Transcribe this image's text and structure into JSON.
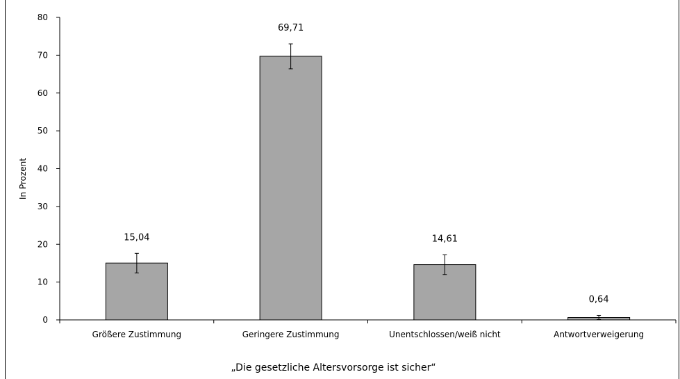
{
  "chart_data": {
    "type": "bar",
    "categories": [
      "Größere Zustimmung",
      "Geringere Zustimmung",
      "Unentschlossen/weiß nicht",
      "Antwortverweigerung"
    ],
    "values": [
      15.04,
      69.71,
      14.61,
      0.64
    ],
    "value_labels": [
      "15,04",
      "69,71",
      "14,61",
      "0,64"
    ],
    "error_low": [
      12.4,
      66.4,
      12.0,
      0.1
    ],
    "error_high": [
      17.6,
      73.0,
      17.2,
      1.2
    ],
    "ylabel": "In Prozent",
    "xlabel": "„Die gesetzliche Altersvorsorge ist sicher“",
    "ylim": [
      0,
      80
    ],
    "yticks": [
      0,
      10,
      20,
      30,
      40,
      50,
      60,
      70,
      80
    ],
    "grid": false,
    "bar_color": "#a6a6a6"
  }
}
